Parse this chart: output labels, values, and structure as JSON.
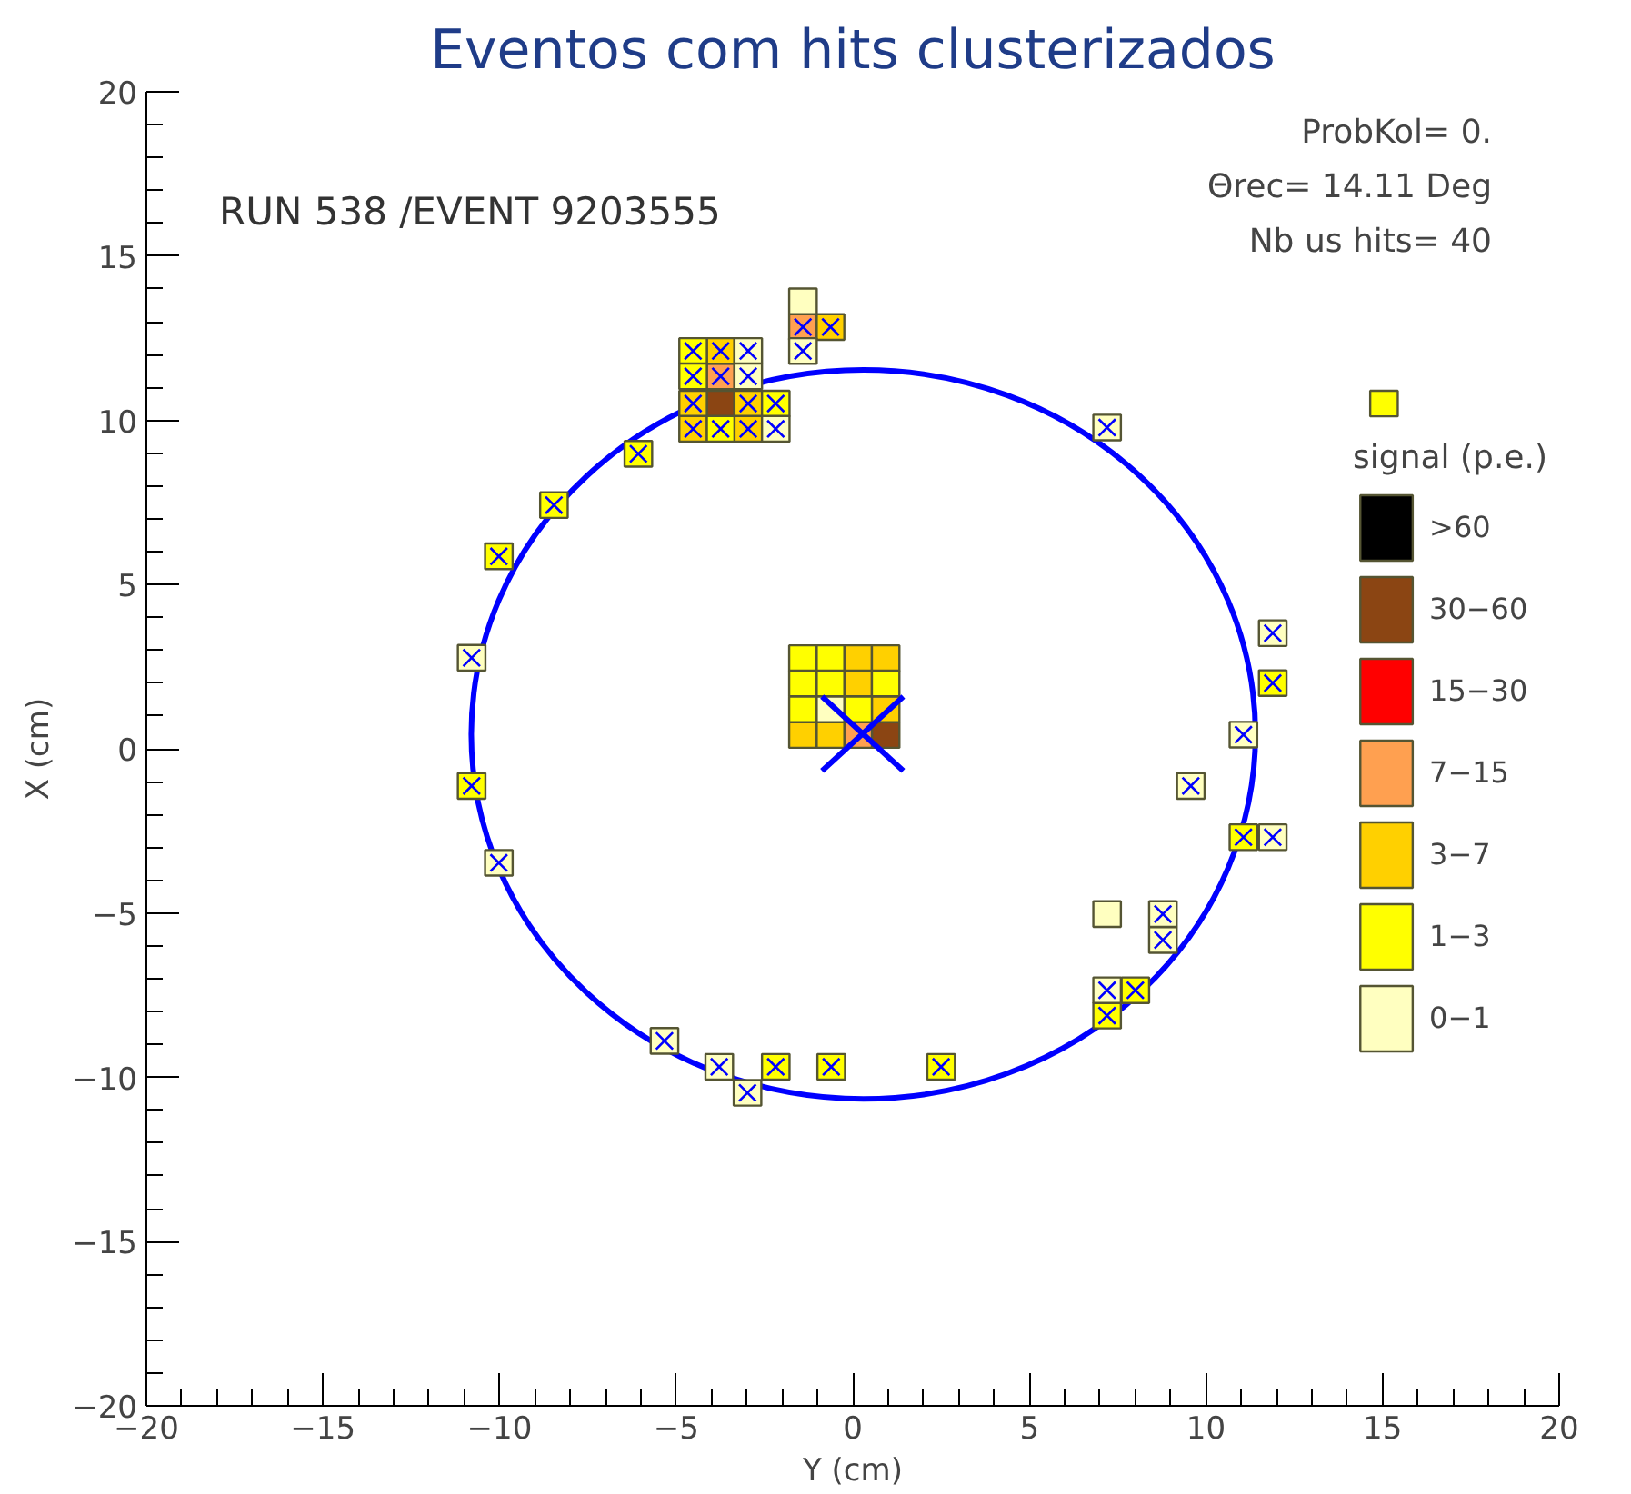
{
  "chart_data": {
    "type": "scatter",
    "title": "Eventos com hits clusterizados",
    "xlabel": "Y (cm)",
    "ylabel": "X (cm)",
    "legend_title": "signal (p.e.)",
    "annotations": [
      "RUN 538 /EVENT 9203555",
      "ProbKol= 0.",
      "Θrec= 14.11 Deg",
      "Nb us hits= 40"
    ],
    "xlim": [
      -20,
      20
    ],
    "ylim": [
      -20,
      20
    ],
    "xticks": [
      -20,
      -15,
      -10,
      -5,
      0,
      5,
      10,
      15,
      20
    ],
    "yticks": [
      -20,
      -15,
      -10,
      -5,
      0,
      5,
      10,
      15,
      20
    ],
    "grid": false,
    "legend": "right",
    "series": [
      {
        "name": ">60",
        "color": "#000000",
        "marker": "square"
      },
      {
        "name": "30−60",
        "color": "#8b4513",
        "marker": "square",
        "x": [
          -3.74,
          0.93
        ],
        "values": [
          10.51,
          0.42
        ]
      },
      {
        "name": "15−30",
        "color": "#ff0000",
        "marker": "square"
      },
      {
        "name": "7−15",
        "color": "#ffa050",
        "marker": "square",
        "x": [
          -3.74,
          -1.41,
          0.15
        ],
        "values": [
          11.34,
          12.84,
          0.42
        ]
      },
      {
        "name": "3−7",
        "color": "#ffd000",
        "marker": "square",
        "x": [
          -3.74,
          -4.52,
          -2.96,
          -4.52,
          -2.96,
          -0.63,
          0.15,
          0.93,
          0.15,
          0.93,
          -1.41,
          -0.63
        ],
        "values": [
          12.11,
          10.51,
          10.51,
          9.74,
          9.74,
          12.84,
          2.76,
          2.76,
          1.99,
          1.2,
          0.42,
          0.42
        ]
      },
      {
        "name": "1−3",
        "color": "#ffff00",
        "marker": "square",
        "x": [
          -4.52,
          -4.52,
          -2.18,
          -3.74,
          -6.07,
          -8.46,
          -10.02,
          -10.79,
          -1.41,
          -0.63,
          -1.41,
          -0.63,
          0.93,
          -1.41,
          0.15,
          -2.18,
          -0.61,
          2.5,
          15.04,
          11.89,
          11.06,
          8.0,
          7.2
        ],
        "values": [
          12.11,
          11.34,
          10.51,
          9.74,
          8.98,
          7.42,
          5.86,
          -1.13,
          2.76,
          2.76,
          1.99,
          1.99,
          1.99,
          1.2,
          1.2,
          -9.68,
          -9.68,
          -9.68,
          10.51,
          2.0,
          -2.69,
          -7.35,
          -8.12
        ]
      },
      {
        "name": "0−1",
        "color": "#ffffc0",
        "marker": "square",
        "x": [
          -2.96,
          -2.96,
          -2.18,
          -1.41,
          -1.41,
          -0.63,
          -10.79,
          -10.02,
          -5.33,
          -3.78,
          -2.98,
          7.2,
          11.89,
          11.06,
          9.57,
          11.89,
          7.2,
          8.78,
          8.78,
          7.2
        ],
        "values": [
          12.11,
          11.34,
          9.74,
          13.62,
          12.11,
          1.2,
          2.77,
          -3.47,
          -8.89,
          -9.68,
          -10.47,
          9.78,
          3.52,
          0.43,
          -1.13,
          -2.69,
          -5.03,
          -5.03,
          -5.82,
          -7.35
        ]
      },
      {
        "type": "line",
        "marker": "none",
        "color": "#0000ff",
        "x": [
          -0.87,
          1.43
        ],
        "values": [
          1.59,
          -0.67
        ]
      },
      {
        "type": "line",
        "marker": "none",
        "color": "#0000ff",
        "x": [
          -0.87,
          1.43
        ],
        "values": [
          -0.67,
          1.59
        ]
      },
      {
        "type": "scatter",
        "marker": "cross",
        "color": "#0000ff",
        "x": [
          -4.52,
          -3.74,
          -2.96,
          -4.52,
          -3.74,
          -2.96,
          -4.52,
          -2.96,
          -2.18,
          -4.52,
          -3.74,
          -2.96,
          -2.18,
          -1.41,
          -0.63,
          -1.41,
          -6.07,
          -8.46,
          -10.02,
          -10.79,
          -10.79,
          -10.02,
          -5.33,
          -3.78,
          -2.98,
          -2.18,
          -0.61,
          2.5,
          7.2,
          11.89,
          11.89,
          11.06,
          9.57,
          11.06,
          11.89,
          8.78,
          8.78,
          7.2,
          8.0,
          7.2
        ],
        "values": [
          12.11,
          12.11,
          12.11,
          11.34,
          11.34,
          11.34,
          10.51,
          10.51,
          10.51,
          9.74,
          9.74,
          9.74,
          9.74,
          12.84,
          12.84,
          12.11,
          8.98,
          7.42,
          5.86,
          2.77,
          -1.13,
          -3.47,
          -8.89,
          -9.68,
          -10.47,
          -9.68,
          -9.68,
          -9.68,
          9.78,
          3.52,
          2.0,
          0.43,
          -1.13,
          -2.69,
          -2.69,
          -5.03,
          -5.82,
          -7.35,
          -7.35,
          -8.12
        ]
      }
    ]
  }
}
